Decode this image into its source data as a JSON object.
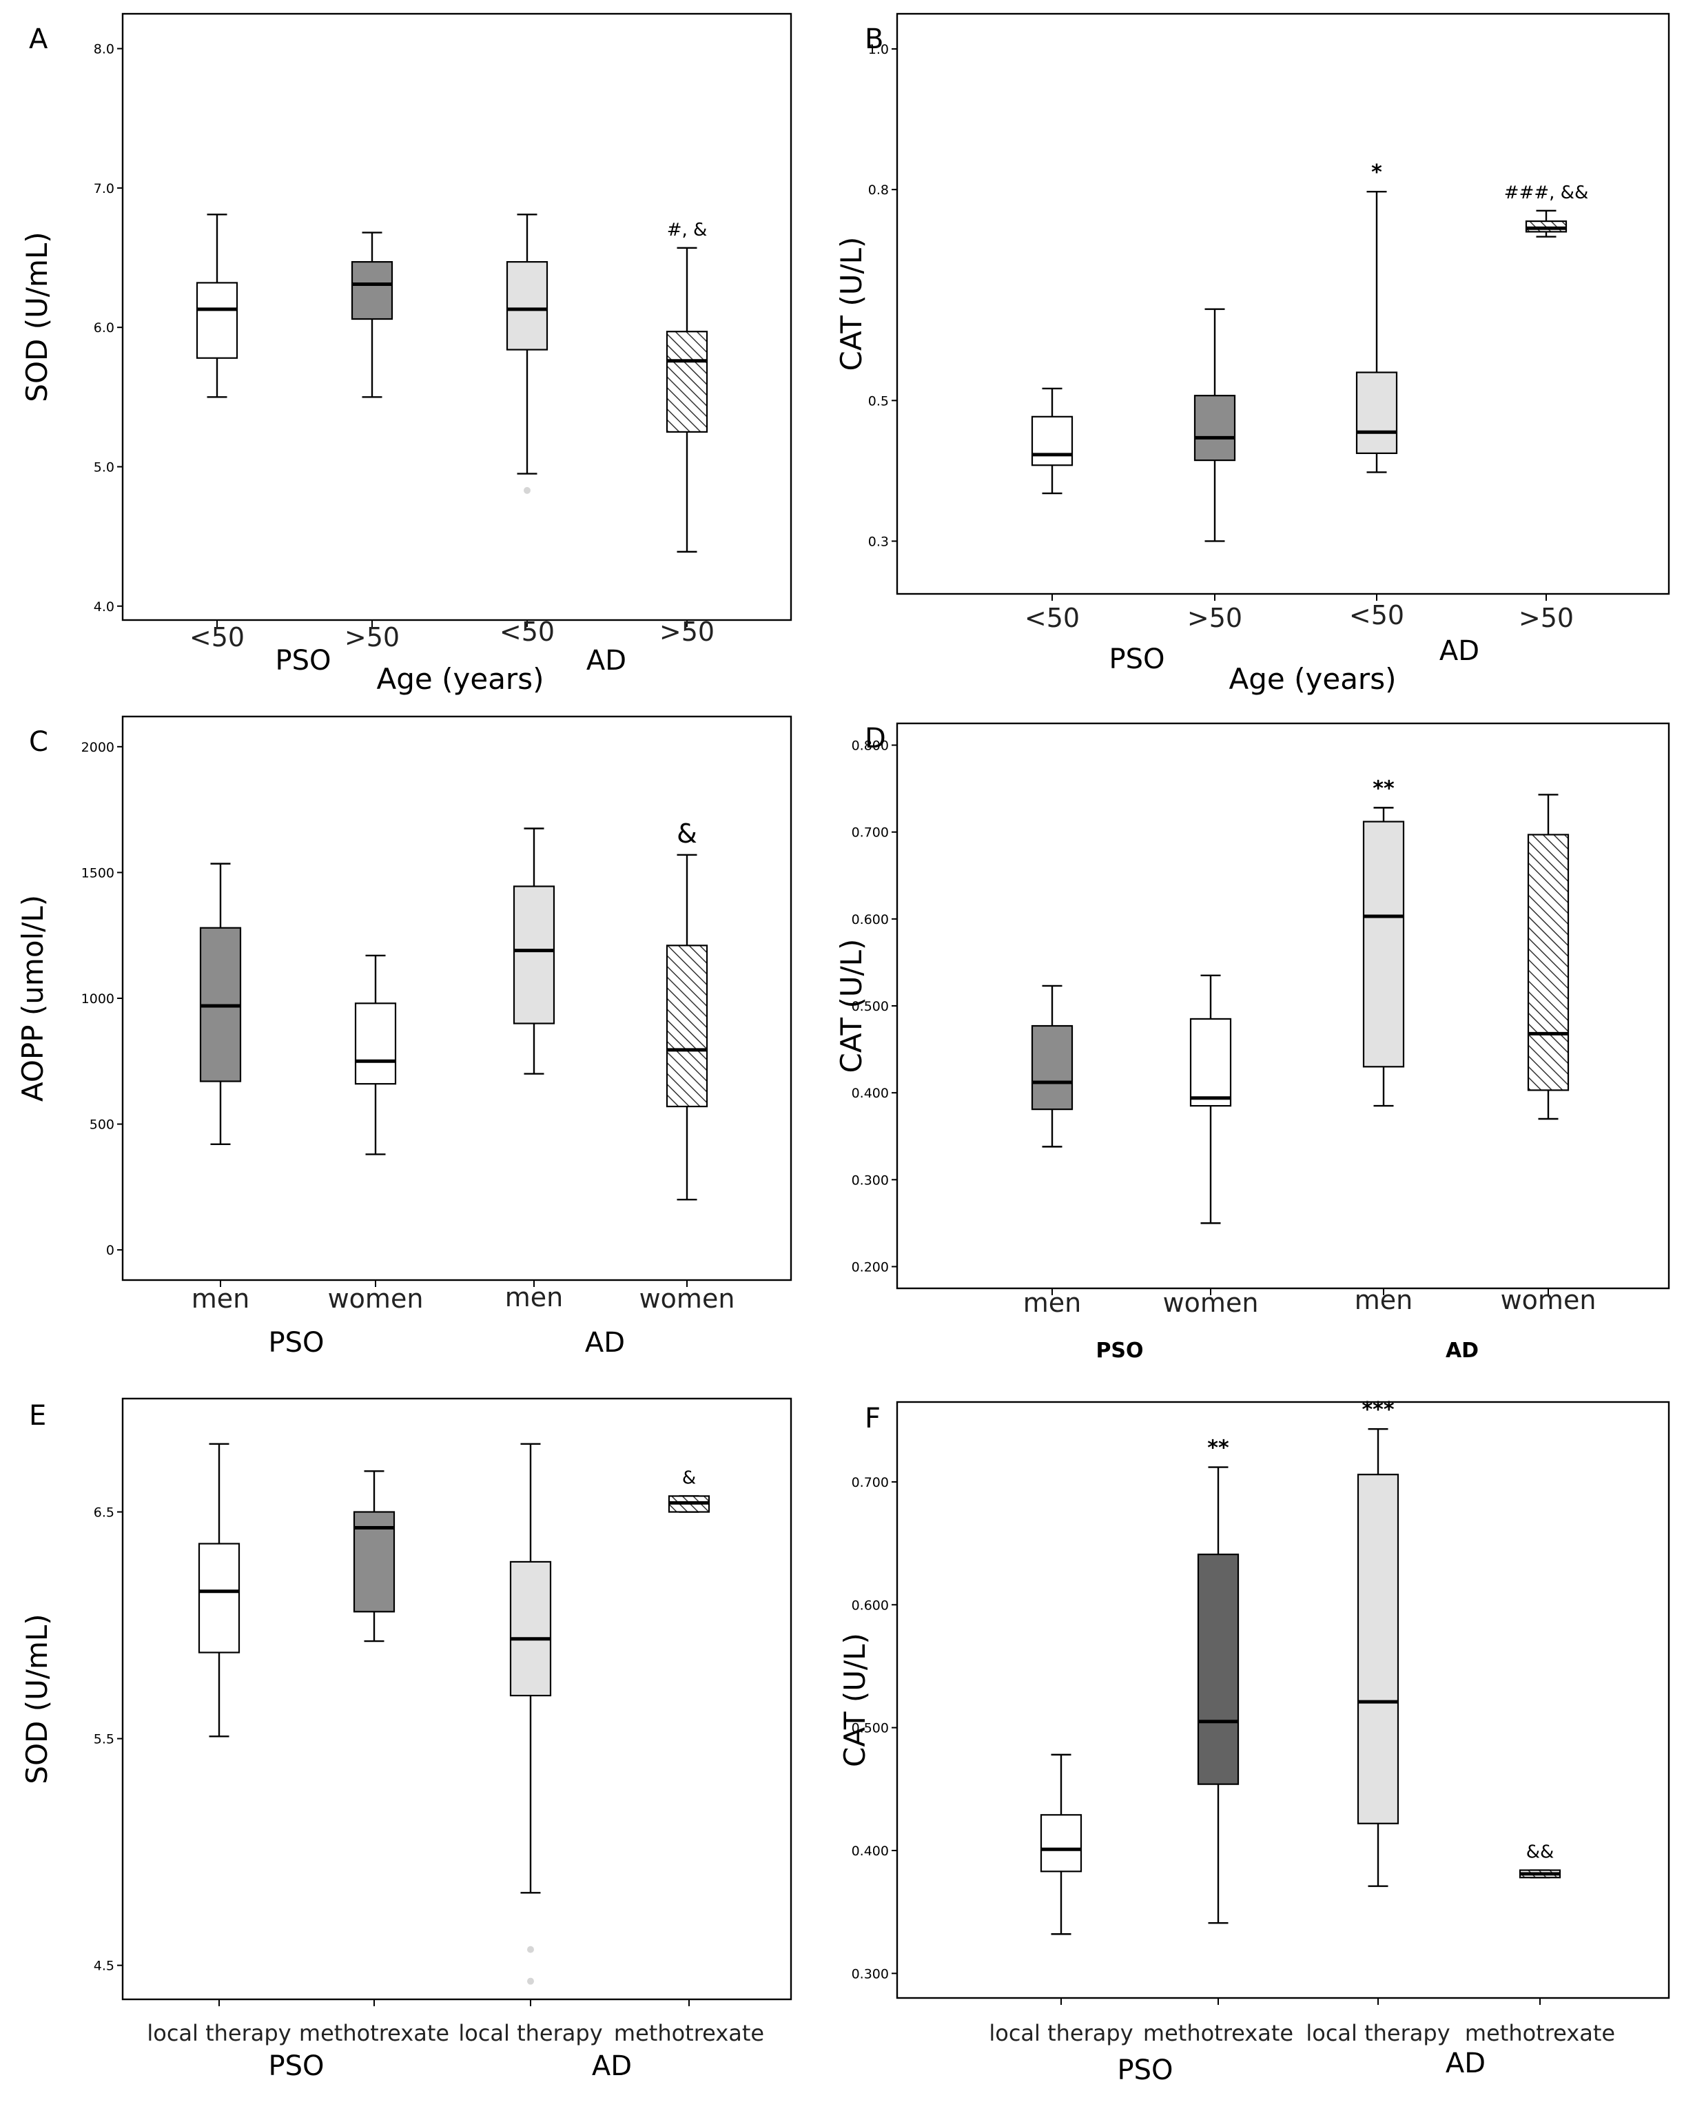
{
  "colors": {
    "white": "#ffffff",
    "dark": "#8c8c8c",
    "darker": "#636363",
    "light": "#e2e2e2",
    "hatch": "#ffffff",
    "outlier": "#d6d6d6"
  },
  "chart_data": [
    {
      "panel": "A",
      "type": "box",
      "title": "",
      "ylabel": "SOD (U/mL)",
      "xlabel": "Age (years)",
      "ylim": [
        3.9,
        8.25
      ],
      "yticks": [
        "4.0",
        "5.0",
        "6.0",
        "7.0",
        "8.0"
      ],
      "group_labels": [
        "PSO",
        "AD"
      ],
      "categories": [
        "<50",
        ">50",
        "<50",
        ">50"
      ],
      "fills": [
        "white",
        "dark",
        "light",
        "hatch"
      ],
      "boxes": [
        {
          "min": 5.5,
          "q1": 5.78,
          "median": 6.13,
          "q3": 6.32,
          "max": 6.81,
          "outliers": [],
          "annotation": ""
        },
        {
          "min": 5.5,
          "q1": 6.06,
          "median": 6.31,
          "q3": 6.47,
          "max": 6.68,
          "outliers": [],
          "annotation": ""
        },
        {
          "min": 4.95,
          "q1": 5.84,
          "median": 6.13,
          "q3": 6.47,
          "max": 6.81,
          "outliers": [
            4.83
          ],
          "annotation": ""
        },
        {
          "min": 4.39,
          "q1": 5.25,
          "median": 5.76,
          "q3": 5.97,
          "max": 6.57,
          "outliers": [],
          "annotation": "#, &"
        }
      ]
    },
    {
      "panel": "B",
      "type": "box",
      "title": "",
      "ylabel": "CAT (U/L)",
      "xlabel": "Age (years)",
      "ylim": [
        0.225,
        1.05
      ],
      "yticks": [
        "0.3",
        "0.5",
        "0.8",
        "1.0"
      ],
      "group_labels": [
        "PSO",
        "AD"
      ],
      "categories": [
        "<50",
        ">50",
        "<50",
        ">50"
      ],
      "fills": [
        "white",
        "dark",
        "light",
        "hatch"
      ],
      "boxes": [
        {
          "min": 0.368,
          "q1": 0.408,
          "median": 0.423,
          "q3": 0.477,
          "max": 0.517,
          "outliers": [],
          "annotation": ""
        },
        {
          "min": 0.3,
          "q1": 0.415,
          "median": 0.447,
          "q3": 0.507,
          "max": 0.63,
          "outliers": [],
          "annotation": ""
        },
        {
          "min": 0.398,
          "q1": 0.425,
          "median": 0.455,
          "q3": 0.54,
          "max": 0.797,
          "outliers": [],
          "annotation": "*"
        },
        {
          "min": 0.733,
          "q1": 0.74,
          "median": 0.745,
          "q3": 0.755,
          "max": 0.77,
          "outliers": [],
          "annotation": "###, &&"
        }
      ]
    },
    {
      "panel": "C",
      "type": "box",
      "title": "",
      "ylabel": "AOPP (umol/L)",
      "xlabel": "",
      "ylim": [
        -120,
        2120
      ],
      "yticks": [
        "0",
        "500",
        "1000",
        "1500",
        "2000"
      ],
      "group_labels": [
        "PSO",
        "AD"
      ],
      "categories": [
        "men",
        "women",
        "men",
        "women"
      ],
      "fills": [
        "dark",
        "white",
        "light",
        "hatch"
      ],
      "boxes": [
        {
          "min": 420,
          "q1": 670,
          "median": 970,
          "q3": 1280,
          "max": 1535,
          "outliers": [],
          "annotation": ""
        },
        {
          "min": 380,
          "q1": 660,
          "median": 750,
          "q3": 980,
          "max": 1170,
          "outliers": [],
          "annotation": ""
        },
        {
          "min": 700,
          "q1": 900,
          "median": 1190,
          "q3": 1445,
          "max": 1675,
          "outliers": [],
          "annotation": ""
        },
        {
          "min": 200,
          "q1": 570,
          "median": 795,
          "q3": 1210,
          "max": 1570,
          "outliers": [],
          "annotation": "&"
        }
      ]
    },
    {
      "panel": "D",
      "type": "box",
      "title": "",
      "ylabel": "CAT (U/L)",
      "xlabel": "",
      "ylim": [
        0.175,
        0.825
      ],
      "yticks": [
        "0.200",
        "0.300",
        "0.400",
        "0.500",
        "0.600",
        "0.700",
        "0.800"
      ],
      "group_labels": [
        "PSO",
        "AD"
      ],
      "group_labels_bold": true,
      "categories": [
        "men",
        "women",
        "men",
        "women"
      ],
      "fills": [
        "dark",
        "white",
        "light",
        "hatch"
      ],
      "boxes": [
        {
          "min": 0.338,
          "q1": 0.381,
          "median": 0.412,
          "q3": 0.477,
          "max": 0.523,
          "outliers": [],
          "annotation": ""
        },
        {
          "min": 0.25,
          "q1": 0.385,
          "median": 0.394,
          "q3": 0.485,
          "max": 0.535,
          "outliers": [],
          "annotation": ""
        },
        {
          "min": 0.385,
          "q1": 0.43,
          "median": 0.603,
          "q3": 0.712,
          "max": 0.728,
          "outliers": [],
          "annotation": "**"
        },
        {
          "min": 0.37,
          "q1": 0.403,
          "median": 0.468,
          "q3": 0.697,
          "max": 0.743,
          "outliers": [],
          "annotation": ""
        }
      ]
    },
    {
      "panel": "E",
      "type": "box",
      "title": "",
      "ylabel": "SOD (U/mL)",
      "xlabel": "",
      "ylim": [
        4.35,
        7.0
      ],
      "yticks": [
        "4.5",
        "5.5",
        "6.5"
      ],
      "group_labels": [
        "PSO",
        "AD"
      ],
      "categories": [
        "local therapy",
        "methotrexate",
        "local therapy",
        "methotrexate"
      ],
      "fills": [
        "white",
        "dark",
        "light",
        "hatch"
      ],
      "boxes": [
        {
          "min": 5.51,
          "q1": 5.88,
          "median": 6.15,
          "q3": 6.36,
          "max": 6.8,
          "outliers": [],
          "annotation": ""
        },
        {
          "min": 5.93,
          "q1": 6.06,
          "median": 6.43,
          "q3": 6.5,
          "max": 6.68,
          "outliers": [],
          "annotation": ""
        },
        {
          "min": 4.82,
          "q1": 5.69,
          "median": 5.94,
          "q3": 6.28,
          "max": 6.8,
          "outliers": [
            4.57,
            4.43
          ],
          "annotation": ""
        },
        {
          "min": 6.5,
          "q1": 6.5,
          "median": 6.54,
          "q3": 6.57,
          "max": 6.57,
          "outliers": [],
          "annotation": "&"
        }
      ]
    },
    {
      "panel": "F",
      "type": "box",
      "title": "",
      "ylabel": "CAT (U/L)",
      "xlabel": "",
      "ylim": [
        0.28,
        0.765
      ],
      "yticks": [
        "0.300",
        "0.400",
        "0.500",
        "0.600",
        "0.700"
      ],
      "group_labels": [
        "PSO",
        "AD"
      ],
      "categories": [
        "local therapy",
        "methotrexate",
        "local therapy",
        "methotrexate"
      ],
      "fills": [
        "white",
        "darker",
        "light",
        "hatch"
      ],
      "boxes": [
        {
          "min": 0.332,
          "q1": 0.383,
          "median": 0.401,
          "q3": 0.429,
          "max": 0.478,
          "outliers": [],
          "annotation": ""
        },
        {
          "min": 0.341,
          "q1": 0.454,
          "median": 0.505,
          "q3": 0.641,
          "max": 0.712,
          "outliers": [],
          "annotation": "**"
        },
        {
          "min": 0.371,
          "q1": 0.422,
          "median": 0.521,
          "q3": 0.706,
          "max": 0.743,
          "outliers": [],
          "annotation": "***"
        },
        {
          "min": 0.378,
          "q1": 0.378,
          "median": 0.381,
          "q3": 0.384,
          "max": 0.384,
          "outliers": [],
          "annotation": "&&"
        }
      ]
    }
  ]
}
